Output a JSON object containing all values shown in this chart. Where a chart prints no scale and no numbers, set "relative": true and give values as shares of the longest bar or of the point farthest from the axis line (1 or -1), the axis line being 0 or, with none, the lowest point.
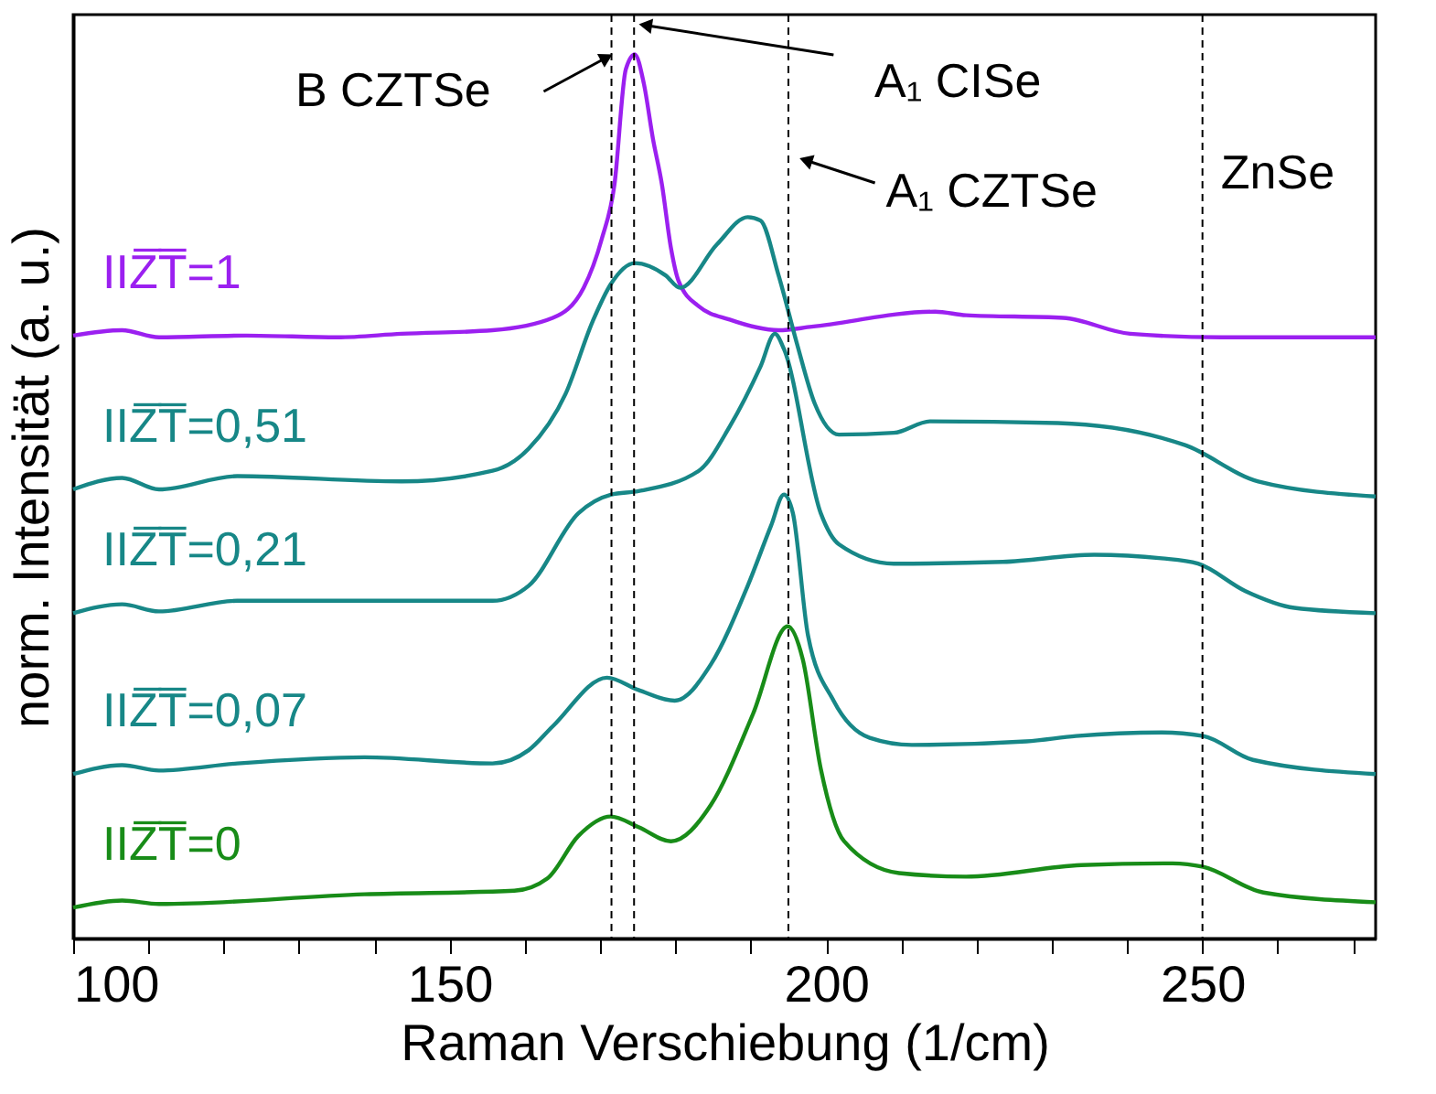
{
  "chart_data": {
    "type": "line",
    "relative": true,
    "xlabel": "Raman Verschiebung (1/cm)",
    "ylabel": "norm. Intensität (a. u.)",
    "xlim": [
      100,
      273
    ],
    "xticks": [
      100,
      {
        "value": 110,
        "label": null
      },
      {
        "value": 120,
        "label": null
      },
      {
        "value": 130,
        "label": null
      },
      {
        "value": 140,
        "label": null
      },
      150,
      {
        "value": 160,
        "label": null
      },
      {
        "value": 170,
        "label": null
      },
      {
        "value": 180,
        "label": null
      },
      {
        "value": 190,
        "label": null
      },
      200,
      {
        "value": 210,
        "label": null
      },
      {
        "value": 220,
        "label": null
      },
      {
        "value": 230,
        "label": null
      },
      {
        "value": 240,
        "label": null
      },
      250,
      {
        "value": 260,
        "label": null
      },
      {
        "value": 270,
        "label": null
      }
    ],
    "line_style": "solid",
    "series": [
      {
        "name": "IIZ̅T̅=1",
        "color": "#9b20f0",
        "x": [
          100,
          106.5,
          111.4,
          123.0,
          135.1,
          143.6,
          155.7,
          163.7,
          167.8,
          170.2,
          171.9,
          173.4,
          174.6,
          175.8,
          177.0,
          178.2,
          179.4,
          180.4,
          183.1,
          187.2,
          193.7,
          198.1,
          214.5,
          218.6,
          231.5,
          240.4,
          252.5,
          273.0
        ],
        "values": [
          0.682,
          0.688,
          0.68,
          0.682,
          0.68,
          0.684,
          0.688,
          0.702,
          0.736,
          0.791,
          0.853,
          0.983,
          1.0,
          0.967,
          0.905,
          0.853,
          0.781,
          0.744,
          0.715,
          0.7,
          0.688,
          0.692,
          0.709,
          0.705,
          0.702,
          0.684,
          0.68,
          0.68
        ]
      },
      {
        "name": "IIZ̅T̅=0,51",
        "color": "#178787",
        "x": [
          100,
          106.5,
          111.4,
          121.8,
          143.6,
          155.7,
          160.5,
          165.4,
          169.0,
          171.4,
          174.6,
          178.7,
          180.6,
          185.5,
          189.6,
          191.3,
          193.7,
          196.1,
          198.5,
          201.7,
          209.0,
          213.8,
          230.8,
          247.7,
          257.4,
          273.0
        ],
        "values": [
          0.508,
          0.521,
          0.508,
          0.523,
          0.517,
          0.529,
          0.554,
          0.616,
          0.698,
          0.74,
          0.764,
          0.75,
          0.736,
          0.785,
          0.816,
          0.812,
          0.75,
          0.674,
          0.605,
          0.57,
          0.572,
          0.585,
          0.583,
          0.558,
          0.517,
          0.5
        ]
      },
      {
        "name": "IIZ̅T̅=0,21",
        "color": "#178787",
        "x": [
          100,
          106.5,
          111.4,
          121.8,
          155.7,
          160.5,
          167.1,
          171.4,
          175.1,
          183.1,
          187.2,
          191.3,
          193.2,
          194.4,
          199.3,
          201.7,
          209.0,
          223.5,
          235.6,
          244.6,
          249.4,
          255.7,
          262.2,
          273.0
        ],
        "values": [
          0.368,
          0.378,
          0.37,
          0.382,
          0.382,
          0.399,
          0.481,
          0.502,
          0.506,
          0.529,
          0.579,
          0.647,
          0.684,
          0.667,
          0.481,
          0.446,
          0.424,
          0.426,
          0.434,
          0.43,
          0.424,
          0.393,
          0.374,
          0.368
        ]
      },
      {
        "name": "IIZ̅T̅=0,07",
        "color": "#178787",
        "x": [
          100,
          106.5,
          111.4,
          121.8,
          138.7,
          155.7,
          160.5,
          163.7,
          170.9,
          175.1,
          179.9,
          184.7,
          189.6,
          192.7,
          194.4,
          195.6,
          197.6,
          201.0,
          205.8,
          211.4,
          226.6,
          233.2,
          244.6,
          250.1,
          256.7,
          273.0
        ],
        "values": [
          0.186,
          0.196,
          0.19,
          0.198,
          0.205,
          0.198,
          0.213,
          0.24,
          0.295,
          0.281,
          0.269,
          0.31,
          0.399,
          0.467,
          0.502,
          0.481,
          0.343,
          0.269,
          0.227,
          0.219,
          0.223,
          0.229,
          0.233,
          0.229,
          0.202,
          0.186
        ]
      },
      {
        "name": "IIZ̅T̅=0",
        "color": "#188c18",
        "x": [
          100,
          106.5,
          111.4,
          138.7,
          158.6,
          163.0,
          167.1,
          171.4,
          175.1,
          179.4,
          184.7,
          190.3,
          194.9,
          196.9,
          199.3,
          202.4,
          209.7,
          218.6,
          233.9,
          246.0,
          250.1,
          258.1,
          273.0
        ],
        "values": [
          0.035,
          0.043,
          0.039,
          0.05,
          0.054,
          0.068,
          0.116,
          0.138,
          0.126,
          0.11,
          0.151,
          0.254,
          0.353,
          0.316,
          0.192,
          0.11,
          0.074,
          0.07,
          0.083,
          0.085,
          0.081,
          0.052,
          0.041
        ]
      }
    ],
    "ref_lines": [
      {
        "axis": "x",
        "value": 171.5,
        "label": "B CZTSe",
        "line_style": "dashed",
        "color": "#000000"
      },
      {
        "axis": "x",
        "value": 174.5,
        "label": "A₁ CISe",
        "line_style": "dashed",
        "color": "#000000"
      },
      {
        "axis": "x",
        "value": 195,
        "label": "A₁ CZTSe",
        "line_style": "dashed",
        "color": "#000000"
      },
      {
        "axis": "x",
        "value": 250,
        "label": "ZnSe",
        "line_style": "dashed",
        "color": "#000000"
      }
    ]
  }
}
